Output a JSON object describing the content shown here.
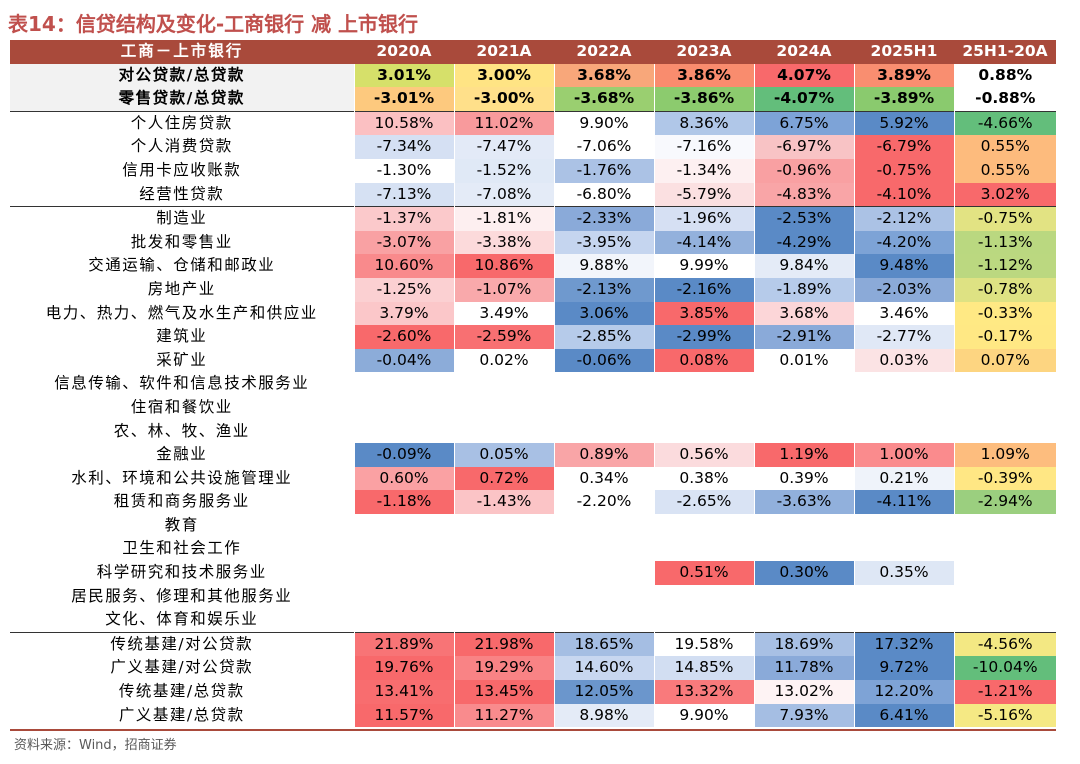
{
  "title": "表14：信贷结构及变化-工商银行 减 上市银行",
  "header": [
    "工商－上市银行",
    "2020A",
    "2021A",
    "2022A",
    "2023A",
    "2024A",
    "2025H1",
    "25H1-20A"
  ],
  "groups": [
    {
      "type": "summary",
      "rows": [
        {
          "label": "对公贷款/总贷款",
          "values": [
            "3.01%",
            "3.00%",
            "3.68%",
            "3.86%",
            "4.07%",
            "3.89%",
            "0.88%"
          ],
          "colors": [
            "#D6E06A",
            "#FFE484",
            "#F8A77A",
            "#F98C6E",
            "#F8696B",
            "#F98E70",
            "#FFFFFF"
          ]
        },
        {
          "label": "零售贷款/总贷款",
          "values": [
            "-3.01%",
            "-3.00%",
            "-3.68%",
            "-3.86%",
            "-4.07%",
            "-3.89%",
            "-0.88%"
          ],
          "colors": [
            "#FDC97E",
            "#FFE08A",
            "#9ACF70",
            "#8CCB6E",
            "#63BE7B",
            "#8ACA6E",
            "#FFFFFF"
          ]
        }
      ]
    },
    {
      "type": "retail",
      "rows": [
        {
          "label": "个人住房贷款",
          "values": [
            "10.58%",
            "11.02%",
            "9.90%",
            "8.36%",
            "6.75%",
            "5.92%",
            "-4.66%"
          ],
          "colors": [
            "#FBC0C2",
            "#F89A9C",
            "#FFFFFF",
            "#B0C7E8",
            "#7DA3D7",
            "#5A8AC6",
            "#63BE7B"
          ]
        },
        {
          "label": "个人消费贷款",
          "values": [
            "-7.34%",
            "-7.47%",
            "-7.06%",
            "-7.16%",
            "-6.97%",
            "-6.79%",
            "0.55%"
          ],
          "colors": [
            "#D5E0F3",
            "#E3EAF7",
            "#FFFFFF",
            "#F8F9FD",
            "#F8C3C5",
            "#F8696B",
            "#FDBB7D"
          ]
        },
        {
          "label": "信用卡应收账款",
          "values": [
            "-1.30%",
            "-1.52%",
            "-1.76%",
            "-1.34%",
            "-0.96%",
            "-0.75%",
            "0.55%"
          ],
          "colors": [
            "#FFFFFF",
            "#E0E9F6",
            "#ABC2E5",
            "#FDF0F1",
            "#F9A0A2",
            "#F8696B",
            "#FDBB7D"
          ]
        },
        {
          "label": "经营性贷款",
          "values": [
            "-7.13%",
            "-7.08%",
            "-6.80%",
            "-5.79%",
            "-4.83%",
            "-4.10%",
            "3.02%"
          ],
          "colors": [
            "#D6E1F3",
            "#E4EBF7",
            "#FFFFFF",
            "#FBE0E1",
            "#F9A5A7",
            "#F8696B",
            "#F8696B"
          ]
        }
      ]
    },
    {
      "type": "industry",
      "rows": [
        {
          "label": "制造业",
          "values": [
            "-1.37%",
            "-1.81%",
            "-2.33%",
            "-1.96%",
            "-2.53%",
            "-2.12%",
            "-0.75%"
          ],
          "colors": [
            "#FBC9CB",
            "#FDEFF0",
            "#8AAAD9",
            "#D6E0F3",
            "#5A8AC6",
            "#ABC2E5",
            "#E2E383"
          ]
        },
        {
          "label": "批发和零售业",
          "values": [
            "-3.07%",
            "-3.38%",
            "-3.95%",
            "-4.14%",
            "-4.29%",
            "-4.20%",
            "-1.13%"
          ],
          "colors": [
            "#F9A1A3",
            "#FCDADB",
            "#C5D5EF",
            "#93B1DC",
            "#5A8AC6",
            "#7DA3D6",
            "#BAD880"
          ]
        },
        {
          "label": "交通运输、仓储和邮政业",
          "values": [
            "10.60%",
            "10.86%",
            "9.88%",
            "9.99%",
            "9.84%",
            "9.48%",
            "-1.12%"
          ],
          "colors": [
            "#F98A8C",
            "#F8696B",
            "#F2F5FB",
            "#FFFFFF",
            "#E4EBF7",
            "#5A8AC6",
            "#BBD880"
          ]
        },
        {
          "label": "房地产业",
          "values": [
            "-1.25%",
            "-1.07%",
            "-2.13%",
            "-2.16%",
            "-1.89%",
            "-2.03%",
            "-0.78%"
          ],
          "colors": [
            "#FBD0D2",
            "#F9A9AB",
            "#6F99CE",
            "#5A8AC6",
            "#B6CBEA",
            "#8BAAD8",
            "#DEE283"
          ]
        },
        {
          "label": "电力、热力、燃气及水生产和供应业",
          "values": [
            "3.79%",
            "3.49%",
            "3.06%",
            "3.85%",
            "3.68%",
            "3.46%",
            "-0.33%"
          ],
          "colors": [
            "#FBC7C9",
            "#FFFFFF",
            "#5A8AC6",
            "#F8696B",
            "#FCD6D8",
            "#FFFFFF",
            "#FFE984"
          ]
        },
        {
          "label": "建筑业",
          "values": [
            "-2.60%",
            "-2.59%",
            "-2.85%",
            "-2.99%",
            "-2.91%",
            "-2.77%",
            "-0.17%"
          ],
          "colors": [
            "#F8696B",
            "#F87072",
            "#B6CBEA",
            "#5A8AC6",
            "#8AAAD9",
            "#E0E8F6",
            "#FFE884"
          ]
        },
        {
          "label": "采矿业",
          "values": [
            "-0.04%",
            "0.02%",
            "-0.06%",
            "0.08%",
            "0.01%",
            "0.03%",
            "0.07%"
          ],
          "colors": [
            "#8CACD9",
            "#FFFFFF",
            "#5A8AC6",
            "#F8696B",
            "#FFFFFF",
            "#FBE3E4",
            "#FDD581"
          ]
        },
        {
          "label": "信息传输、软件和信息技术服务业",
          "values": [
            "",
            "",
            "",
            "",
            "",
            "",
            ""
          ],
          "colors": [
            "#FFFFFF",
            "#FFFFFF",
            "#FFFFFF",
            "#FFFFFF",
            "#FFFFFF",
            "#FFFFFF",
            "#FFFFFF"
          ]
        },
        {
          "label": "住宿和餐饮业",
          "values": [
            "",
            "",
            "",
            "",
            "",
            "",
            ""
          ],
          "colors": [
            "#FFFFFF",
            "#FFFFFF",
            "#FFFFFF",
            "#FFFFFF",
            "#FFFFFF",
            "#FFFFFF",
            "#FFFFFF"
          ]
        },
        {
          "label": "农、林、牧、渔业",
          "values": [
            "",
            "",
            "",
            "",
            "",
            "",
            ""
          ],
          "colors": [
            "#FFFFFF",
            "#FFFFFF",
            "#FFFFFF",
            "#FFFFFF",
            "#FFFFFF",
            "#FFFFFF",
            "#FFFFFF"
          ]
        },
        {
          "label": "金融业",
          "values": [
            "-0.09%",
            "0.05%",
            "0.89%",
            "0.56%",
            "1.19%",
            "1.00%",
            "1.09%"
          ],
          "colors": [
            "#5A8AC6",
            "#A8C0E4",
            "#F9A5A7",
            "#FBDBDD",
            "#F8696B",
            "#FA8B8D",
            "#FDBD7E"
          ]
        },
        {
          "label": "水利、环境和公共设施管理业",
          "values": [
            "0.60%",
            "0.72%",
            "0.34%",
            "0.38%",
            "0.39%",
            "0.21%",
            "-0.39%"
          ],
          "colors": [
            "#FAA1A3",
            "#F8696B",
            "#FFFFFF",
            "#FFFFFF",
            "#FFFFFF",
            "#EFF3FA",
            "#FFE784"
          ]
        },
        {
          "label": "租赁和商务服务业",
          "values": [
            "-1.18%",
            "-1.43%",
            "-2.20%",
            "-2.65%",
            "-3.63%",
            "-4.11%",
            "-2.94%"
          ],
          "colors": [
            "#F8696B",
            "#FBC4C6",
            "#FFFFFF",
            "#D9E3F4",
            "#91B0DC",
            "#5A8AC6",
            "#9BCF7F"
          ]
        },
        {
          "label": "教育",
          "values": [
            "",
            "",
            "",
            "",
            "",
            "",
            ""
          ],
          "colors": [
            "#FFFFFF",
            "#FFFFFF",
            "#FFFFFF",
            "#FFFFFF",
            "#FFFFFF",
            "#FFFFFF",
            "#FFFFFF"
          ]
        },
        {
          "label": "卫生和社会工作",
          "values": [
            "",
            "",
            "",
            "",
            "",
            "",
            ""
          ],
          "colors": [
            "#FFFFFF",
            "#FFFFFF",
            "#FFFFFF",
            "#FFFFFF",
            "#FFFFFF",
            "#FFFFFF",
            "#FFFFFF"
          ]
        },
        {
          "label": "科学研究和技术服务业",
          "values": [
            "",
            "",
            "",
            "0.51%",
            "0.30%",
            "0.35%",
            ""
          ],
          "colors": [
            "#FFFFFF",
            "#FFFFFF",
            "#FFFFFF",
            "#F8696B",
            "#5A8AC6",
            "#DEE7F5",
            "#FFFFFF"
          ]
        },
        {
          "label": "居民服务、修理和其他服务业",
          "values": [
            "",
            "",
            "",
            "",
            "",
            "",
            ""
          ],
          "colors": [
            "#FFFFFF",
            "#FFFFFF",
            "#FFFFFF",
            "#FFFFFF",
            "#FFFFFF",
            "#FFFFFF",
            "#FFFFFF"
          ]
        },
        {
          "label": "文化、体育和娱乐业",
          "values": [
            "",
            "",
            "",
            "",
            "",
            "",
            ""
          ],
          "colors": [
            "#FFFFFF",
            "#FFFFFF",
            "#FFFFFF",
            "#FFFFFF",
            "#FFFFFF",
            "#FFFFFF",
            "#FFFFFF"
          ]
        }
      ]
    },
    {
      "type": "infra",
      "rows": [
        {
          "label": "传统基建/对公贷款",
          "values": [
            "21.89%",
            "21.98%",
            "18.65%",
            "19.58%",
            "18.69%",
            "17.32%",
            "-4.56%"
          ],
          "colors": [
            "#F87476",
            "#F8696B",
            "#A5BEE3",
            "#FFFFFF",
            "#A8C0E4",
            "#5A8AC6",
            "#F3E883"
          ]
        },
        {
          "label": "广义基建/对公贷款",
          "values": [
            "19.76%",
            "19.29%",
            "14.60%",
            "14.85%",
            "11.78%",
            "9.72%",
            "-10.04%"
          ],
          "colors": [
            "#F8696B",
            "#F98385",
            "#C8D7F0",
            "#D2DEF2",
            "#8AAAD9",
            "#5A8AC6",
            "#63BE7B"
          ]
        },
        {
          "label": "传统基建/总贷款",
          "values": [
            "13.41%",
            "13.45%",
            "12.05%",
            "13.32%",
            "13.02%",
            "12.20%",
            "-1.21%"
          ],
          "colors": [
            "#F86D6F",
            "#F8696B",
            "#6B96CC",
            "#F97A7C",
            "#FEF3F4",
            "#7EA3D6",
            "#F8696B"
          ]
        },
        {
          "label": "广义基建/总贷款",
          "values": [
            "11.57%",
            "11.27%",
            "8.98%",
            "9.90%",
            "7.93%",
            "6.41%",
            "-5.16%"
          ],
          "colors": [
            "#F8696B",
            "#F98B8D",
            "#E4EBF7",
            "#FFFFFF",
            "#A5BEE3",
            "#5A8AC6",
            "#F5E984"
          ]
        }
      ]
    }
  ],
  "source": "资料来源：Wind，招商证券"
}
